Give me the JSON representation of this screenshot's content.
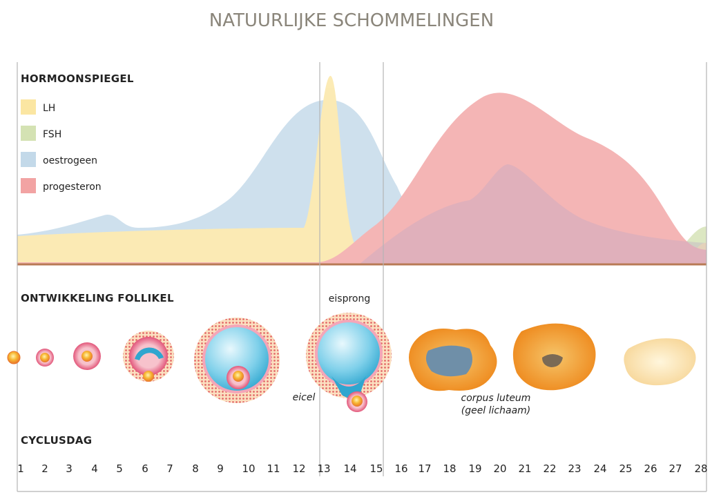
{
  "header": {
    "title": "NATUURLIJKE SCHOMMELINGEN"
  },
  "sections": {
    "hormones": "HORMOONSPIEGEL",
    "follicle": "ONTWIKKELING FOLLIKEL",
    "cycle": "CYCLUSDAG"
  },
  "legend": [
    {
      "label": "LH",
      "color": "#fbe6a2"
    },
    {
      "label": "FSH",
      "color": "#d4e2b3"
    },
    {
      "label": "oestrogeen",
      "color": "#c3d9e9"
    },
    {
      "label": "progesteron",
      "color": "#f2a3a3"
    }
  ],
  "labels": {
    "ovulation": "eisprong",
    "egg": "eicel",
    "corpus_luteum": [
      "corpus luteum",
      "(geel lichaam)"
    ]
  },
  "days": [
    "1",
    "2",
    "3",
    "4",
    "5",
    "6",
    "7",
    "8",
    "9",
    "10",
    "11",
    "12",
    "13",
    "14",
    "15",
    "16",
    "17",
    "18",
    "19",
    "20",
    "21",
    "22",
    "23",
    "24",
    "25",
    "26",
    "27",
    "28"
  ]
}
